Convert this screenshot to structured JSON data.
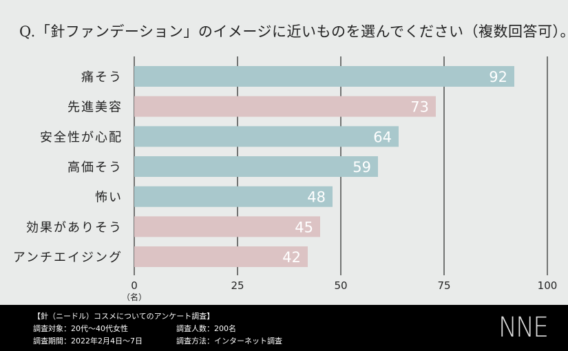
{
  "title": "Q.「針ファンデーション」のイメージに近いものを選んでください（複数回答可）。",
  "chart_data": {
    "type": "bar",
    "orientation": "horizontal",
    "title": "Q.「針ファンデーション」のイメージに近いものを選んでください（複数回答可）。",
    "categories": [
      "痛そう",
      "先進美容",
      "安全性が心配",
      "高価そう",
      "怖い",
      "効果がありそう",
      "アンチエイジング"
    ],
    "values": [
      92,
      73,
      64,
      59,
      48,
      45,
      42
    ],
    "bar_colors": [
      "#a9c8cc",
      "#dcc3c4",
      "#a9c8cc",
      "#a9c8cc",
      "#a9c8cc",
      "#dcc3c4",
      "#dcc3c4"
    ],
    "xlim": [
      0,
      100
    ],
    "xticks": [
      "0",
      "25",
      "50",
      "75",
      "100"
    ],
    "xlabel": "（名）",
    "grid": true
  },
  "footer": {
    "heading": "【針（ニードル）コスメについてのアンケート調査】",
    "target": "調査対象：20代～40代女性",
    "count": "調査人数：200名",
    "period": "調査期間：2022年2月4日～7日",
    "method": "調査方法：インターネット調査",
    "logo": "NNE"
  }
}
